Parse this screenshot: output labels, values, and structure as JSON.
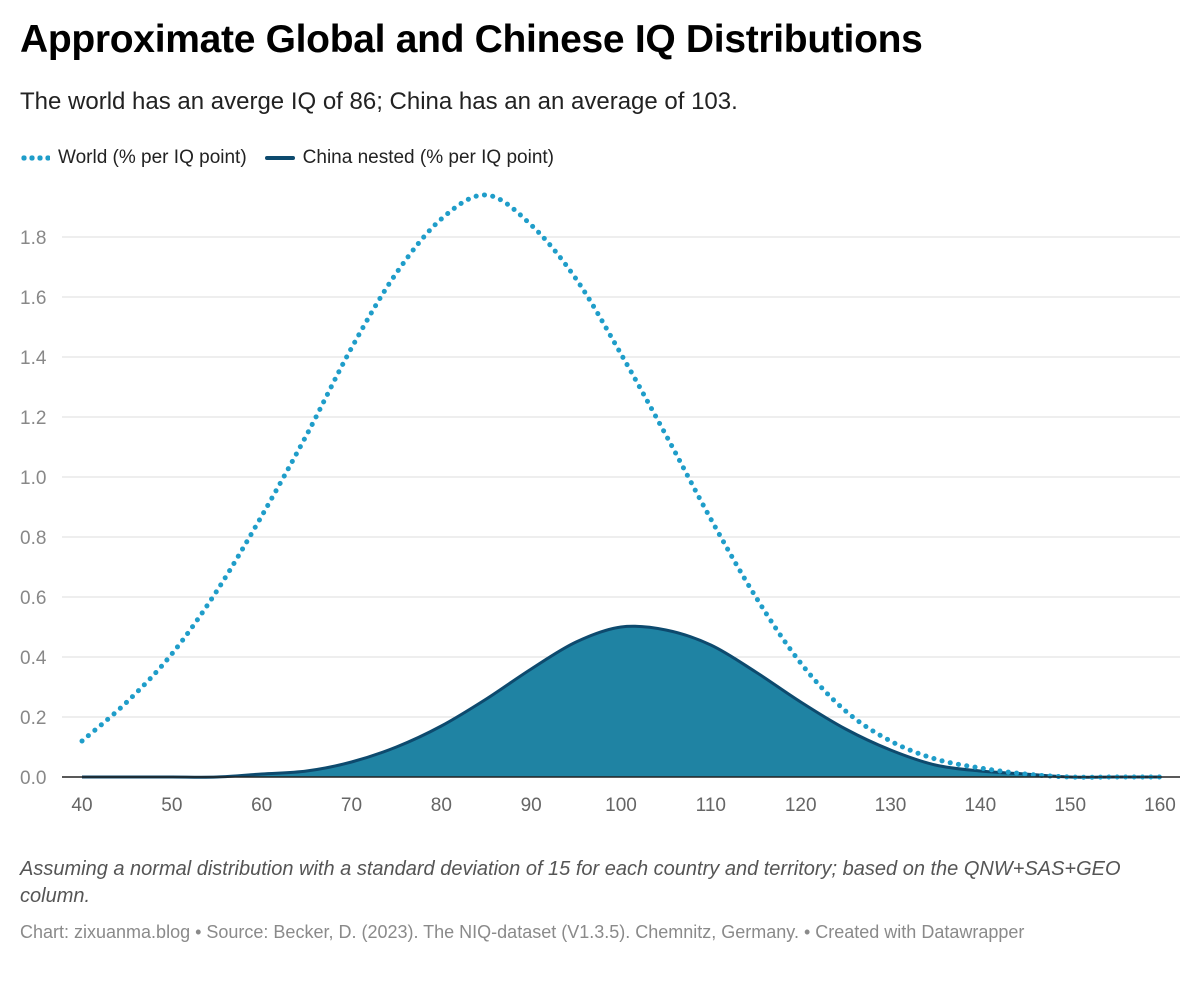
{
  "header": {
    "title": "Approximate Global and Chinese IQ Distributions",
    "subtitle": "The world has an averge IQ of 86; China has an an average of 103."
  },
  "legend": {
    "world_label": "World (% per IQ point)",
    "china_label": "China nested (% per IQ point)"
  },
  "colors": {
    "world": "#1f9dc9",
    "china_line": "#0d4a6e",
    "china_fill": "#1f83a3",
    "grid": "#dddddd",
    "tick_text": "#888888"
  },
  "chart_data": {
    "type": "area",
    "title": "Approximate Global and Chinese IQ Distributions",
    "xlabel": "",
    "ylabel": "",
    "xlim": [
      40,
      160
    ],
    "ylim": [
      0,
      1.9
    ],
    "x_ticks": [
      40,
      50,
      60,
      70,
      80,
      90,
      100,
      110,
      120,
      130,
      140,
      150,
      160
    ],
    "y_ticks": [
      0.0,
      0.2,
      0.4,
      0.6,
      0.8,
      1.0,
      1.2,
      1.4,
      1.6,
      1.8
    ],
    "grid": "horizontal",
    "legend_position": "top-left",
    "series": [
      {
        "name": "World (% per IQ point)",
        "style": "dotted line",
        "x": [
          40,
          45,
          50,
          55,
          60,
          65,
          70,
          75,
          80,
          85,
          90,
          95,
          100,
          105,
          110,
          115,
          120,
          125,
          130,
          135,
          140,
          145,
          150,
          155,
          160
        ],
        "y": [
          0.12,
          0.25,
          0.41,
          0.62,
          0.87,
          1.14,
          1.43,
          1.68,
          1.86,
          1.94,
          1.84,
          1.66,
          1.41,
          1.14,
          0.86,
          0.6,
          0.38,
          0.22,
          0.12,
          0.06,
          0.03,
          0.01,
          0.0,
          0.0,
          0.0
        ]
      },
      {
        "name": "China nested (% per IQ point)",
        "style": "filled area",
        "x": [
          40,
          45,
          50,
          55,
          60,
          65,
          70,
          75,
          80,
          85,
          90,
          95,
          100,
          105,
          110,
          115,
          120,
          125,
          130,
          135,
          140,
          145,
          150,
          155,
          160
        ],
        "y": [
          0.0,
          0.0,
          0.0,
          0.0,
          0.01,
          0.02,
          0.05,
          0.1,
          0.17,
          0.26,
          0.36,
          0.45,
          0.5,
          0.49,
          0.44,
          0.35,
          0.25,
          0.16,
          0.09,
          0.04,
          0.02,
          0.01,
          0.0,
          0.0,
          0.0
        ]
      }
    ]
  },
  "footer": {
    "notes": "Assuming a normal distribution with a standard deviation of 15 for each country and territory; based on the QNW+SAS+GEO column.",
    "credits": "Chart: zixuanma.blog • Source: Becker, D. (2023). The NIQ-dataset (V1.3.5). Chemnitz, Germany. • Created with Datawrapper"
  }
}
